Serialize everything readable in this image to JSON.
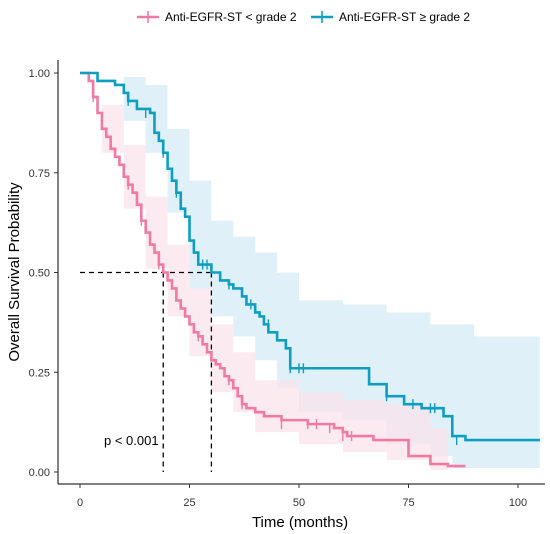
{
  "chart_data": {
    "type": "line",
    "subtype": "kaplan-meier",
    "xlabel": "Time (months)",
    "ylabel": "Overall Survival Probability",
    "xlim": [
      0,
      105
    ],
    "ylim": [
      0,
      1
    ],
    "x_ticks": [
      0,
      25,
      50,
      75,
      100
    ],
    "y_ticks": [
      0,
      0.25,
      0.5,
      0.75,
      1
    ],
    "x_tick_labels": [
      "0",
      "25",
      "50",
      "75",
      "100"
    ],
    "y_tick_labels": [
      "0.00",
      "0.25",
      "0.50",
      "0.75",
      "1.00"
    ],
    "grid": false,
    "legend_position": "top",
    "annotation": "p < 0.001",
    "median_lines": {
      "y": 0.5,
      "x": [
        19,
        30
      ]
    },
    "series": [
      {
        "name": "Anti-EGFR-ST < grade 2",
        "color": "#f07aa0",
        "band_color": "#fbe3ec",
        "steps": [
          [
            0,
            1.0
          ],
          [
            2,
            0.98
          ],
          [
            3,
            0.94
          ],
          [
            4,
            0.9
          ],
          [
            5,
            0.86
          ],
          [
            6,
            0.84
          ],
          [
            7,
            0.81
          ],
          [
            8,
            0.79
          ],
          [
            9,
            0.77
          ],
          [
            10,
            0.74
          ],
          [
            11,
            0.72
          ],
          [
            12,
            0.7
          ],
          [
            13,
            0.67
          ],
          [
            14,
            0.63
          ],
          [
            15,
            0.6
          ],
          [
            16,
            0.57
          ],
          [
            17,
            0.55
          ],
          [
            18,
            0.52
          ],
          [
            19,
            0.5
          ],
          [
            20,
            0.48
          ],
          [
            21,
            0.46
          ],
          [
            22,
            0.43
          ],
          [
            23,
            0.41
          ],
          [
            24,
            0.39
          ],
          [
            25,
            0.37
          ],
          [
            26,
            0.35
          ],
          [
            27,
            0.34
          ],
          [
            28,
            0.32
          ],
          [
            29,
            0.3
          ],
          [
            30,
            0.28
          ],
          [
            31,
            0.27
          ],
          [
            32,
            0.26
          ],
          [
            33,
            0.24
          ],
          [
            34,
            0.23
          ],
          [
            35,
            0.21
          ],
          [
            36,
            0.19
          ],
          [
            37,
            0.17
          ],
          [
            38,
            0.16
          ],
          [
            40,
            0.15
          ],
          [
            42,
            0.14
          ],
          [
            46,
            0.13
          ],
          [
            52,
            0.12
          ],
          [
            58,
            0.11
          ],
          [
            60,
            0.1
          ],
          [
            61,
            0.09
          ],
          [
            65,
            0.09
          ],
          [
            67,
            0.08
          ],
          [
            75,
            0.04
          ],
          [
            80,
            0.02
          ],
          [
            84,
            0.015
          ],
          [
            88,
            0.015
          ]
        ],
        "lower": [
          [
            0,
            1.0
          ],
          [
            5,
            0.8
          ],
          [
            10,
            0.66
          ],
          [
            15,
            0.51
          ],
          [
            20,
            0.39
          ],
          [
            25,
            0.29
          ],
          [
            30,
            0.2
          ],
          [
            35,
            0.15
          ],
          [
            40,
            0.1
          ],
          [
            50,
            0.07
          ],
          [
            60,
            0.05
          ],
          [
            70,
            0.03
          ],
          [
            80,
            0.005
          ],
          [
            84,
            0.0
          ]
        ],
        "upper": [
          [
            0,
            1.0
          ],
          [
            5,
            0.92
          ],
          [
            10,
            0.82
          ],
          [
            15,
            0.69
          ],
          [
            20,
            0.57
          ],
          [
            25,
            0.46
          ],
          [
            30,
            0.37
          ],
          [
            35,
            0.3
          ],
          [
            40,
            0.23
          ],
          [
            50,
            0.2
          ],
          [
            60,
            0.18
          ],
          [
            70,
            0.17
          ],
          [
            80,
            0.11
          ],
          [
            84,
            0.09
          ]
        ],
        "censor": [
          [
            3,
            0.94
          ],
          [
            6,
            0.85
          ],
          [
            8,
            0.8
          ],
          [
            11,
            0.72
          ],
          [
            14,
            0.63
          ],
          [
            18,
            0.52
          ],
          [
            22,
            0.45
          ],
          [
            25,
            0.38
          ],
          [
            27,
            0.34
          ],
          [
            30,
            0.29
          ],
          [
            34,
            0.23
          ],
          [
            37,
            0.17
          ],
          [
            46,
            0.12
          ],
          [
            52,
            0.12
          ],
          [
            54,
            0.12
          ],
          [
            57,
            0.11
          ],
          [
            60,
            0.09
          ],
          [
            62,
            0.09
          ]
        ]
      },
      {
        "name": "Anti-EGFR-ST ≥ grade 2",
        "color": "#0e9ec2",
        "band_color": "#d6ebf6",
        "steps": [
          [
            0,
            1.0
          ],
          [
            4,
            0.98
          ],
          [
            8,
            0.97
          ],
          [
            10,
            0.95
          ],
          [
            11,
            0.93
          ],
          [
            13,
            0.91
          ],
          [
            16,
            0.9
          ],
          [
            17,
            0.85
          ],
          [
            18,
            0.83
          ],
          [
            19,
            0.8
          ],
          [
            20,
            0.76
          ],
          [
            21,
            0.73
          ],
          [
            22,
            0.7
          ],
          [
            23,
            0.66
          ],
          [
            24,
            0.64
          ],
          [
            25,
            0.58
          ],
          [
            26,
            0.55
          ],
          [
            27,
            0.52
          ],
          [
            30,
            0.5
          ],
          [
            32,
            0.48
          ],
          [
            34,
            0.47
          ],
          [
            35,
            0.46
          ],
          [
            37,
            0.44
          ],
          [
            38,
            0.42
          ],
          [
            40,
            0.4
          ],
          [
            41,
            0.39
          ],
          [
            42,
            0.37
          ],
          [
            43,
            0.35
          ],
          [
            45,
            0.33
          ],
          [
            47,
            0.31
          ],
          [
            48,
            0.26
          ],
          [
            56,
            0.26
          ],
          [
            66,
            0.22
          ],
          [
            70,
            0.19
          ],
          [
            74,
            0.17
          ],
          [
            78,
            0.16
          ],
          [
            83,
            0.14
          ],
          [
            85,
            0.09
          ],
          [
            88,
            0.08
          ],
          [
            105,
            0.08
          ]
        ],
        "lower": [
          [
            0,
            1.0
          ],
          [
            10,
            0.88
          ],
          [
            15,
            0.8
          ],
          [
            20,
            0.65
          ],
          [
            25,
            0.46
          ],
          [
            30,
            0.39
          ],
          [
            35,
            0.34
          ],
          [
            40,
            0.28
          ],
          [
            45,
            0.21
          ],
          [
            50,
            0.15
          ],
          [
            60,
            0.13
          ],
          [
            70,
            0.07
          ],
          [
            80,
            0.04
          ],
          [
            85,
            0.01
          ],
          [
            105,
            0.0
          ]
        ],
        "upper": [
          [
            0,
            1.0
          ],
          [
            10,
            0.99
          ],
          [
            15,
            0.97
          ],
          [
            20,
            0.86
          ],
          [
            25,
            0.73
          ],
          [
            30,
            0.63
          ],
          [
            35,
            0.59
          ],
          [
            40,
            0.55
          ],
          [
            45,
            0.5
          ],
          [
            50,
            0.43
          ],
          [
            60,
            0.42
          ],
          [
            70,
            0.4
          ],
          [
            80,
            0.37
          ],
          [
            90,
            0.34
          ],
          [
            105,
            0.33
          ]
        ],
        "censor": [
          [
            11,
            0.93
          ],
          [
            15,
            0.9
          ],
          [
            19,
            0.8
          ],
          [
            22,
            0.7
          ],
          [
            24,
            0.65
          ],
          [
            28,
            0.52
          ],
          [
            29,
            0.52
          ],
          [
            34,
            0.47
          ],
          [
            39,
            0.42
          ],
          [
            43,
            0.37
          ],
          [
            48,
            0.26
          ],
          [
            50,
            0.26
          ],
          [
            51,
            0.26
          ],
          [
            70,
            0.19
          ],
          [
            76,
            0.17
          ],
          [
            80,
            0.16
          ],
          [
            81,
            0.16
          ],
          [
            86,
            0.08
          ]
        ]
      }
    ]
  }
}
